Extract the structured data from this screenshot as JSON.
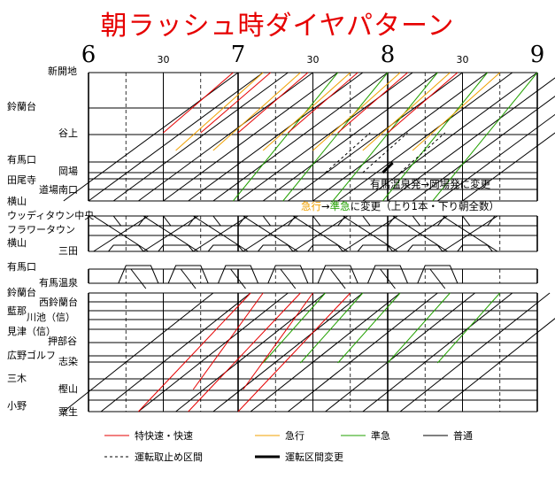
{
  "title": "朝ラッシュ時ダイヤパターン",
  "chart_data": {
    "type": "line",
    "title": "朝ラッシュ時ダイヤパターン",
    "x_axis": {
      "range": [
        "6:00",
        "9:00"
      ],
      "hour_labels": [
        "6",
        "7",
        "8",
        "9"
      ],
      "half_labels": [
        "30",
        "30",
        "30"
      ],
      "minor_gridlines": "dashed every 15 minutes",
      "major_gridlines": "solid every 30 minutes"
    },
    "stations_left": [
      "新開地",
      "鈴蘭台",
      "谷上",
      "有馬口",
      "岡場",
      "田尾寺",
      "道場南口",
      "横山",
      "ウッディタウン中央",
      "フラワータウン",
      "横山",
      "三田",
      "有馬口",
      "有馬温泉",
      "鈴蘭台",
      "西鈴蘭台",
      "藍那",
      "川池（信）",
      "見津（信）",
      "押部谷",
      "広野ゴルフ",
      "志染",
      "三木",
      "樫山",
      "小野",
      "粟生"
    ],
    "annotations": [
      "有馬温泉発→岡場発に変更",
      "急行→準急に変更（上り1本・下り朝全数）"
    ],
    "legend": [
      {
        "label": "特快速・快速",
        "color": "#e60000",
        "style": "solid"
      },
      {
        "label": "急行",
        "color": "#f0a000",
        "style": "solid"
      },
      {
        "label": "準急",
        "color": "#22a000",
        "style": "solid"
      },
      {
        "label": "普通",
        "color": "#000000",
        "style": "solid"
      },
      {
        "label": "運転取止め区間",
        "color": "#000000",
        "style": "dashed"
      },
      {
        "label": "運転区間変更",
        "color": "#000000",
        "style": "bold"
      }
    ],
    "annotation_highlight": {
      "急行": "#f0a000",
      "準急": "#22a000"
    }
  }
}
